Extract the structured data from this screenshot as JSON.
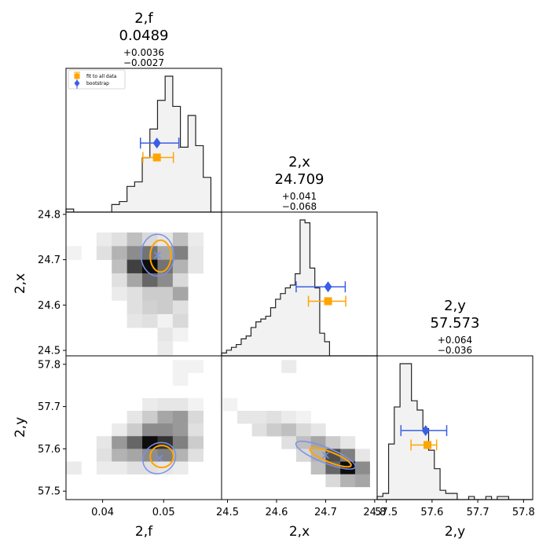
{
  "colors": {
    "fit": "#ffa500",
    "bootstrap": "#3a5fe6",
    "bootstrap_ellipse": "#7a90e6",
    "hist_fill": "#f2f2f2",
    "hist_line": "#222222"
  },
  "legend": {
    "fit_label": "fit to all data",
    "bootstrap_label": "bootstrap"
  },
  "chart_data": {
    "type": "corner",
    "parameters": [
      {
        "name": "2,f",
        "value": "0.0489",
        "err_plus": "+0.0036",
        "err_minus": "−0.0027",
        "range": [
          0.034,
          0.0595
        ],
        "ticks": [
          0.04,
          0.05
        ],
        "tick_labels": [
          "0.04",
          "0.05"
        ],
        "hist_edges_start": 0.034,
        "hist_bin_width": 0.00125,
        "hist_counts": [
          2,
          0,
          0,
          0,
          0,
          0,
          5,
          7,
          17,
          20,
          36,
          55,
          74,
          90,
          70,
          43,
          64,
          44,
          23,
          0,
          0
        ],
        "fit": {
          "value": 0.0489,
          "lo": 0.0466,
          "hi": 0.0516
        },
        "bootstrap": {
          "value": 0.0489,
          "lo": 0.0462,
          "hi": 0.0525
        }
      },
      {
        "name": "2,x",
        "value": "24.709",
        "err_plus": "+0.041",
        "err_minus": "−0.068",
        "range": [
          24.488,
          24.805
        ],
        "ticks": [
          24.5,
          24.6,
          24.7,
          24.8
        ],
        "tick_labels": [
          "24.5",
          "24.6",
          "24.7",
          "24.8"
        ],
        "hist_edges_start": 24.488,
        "hist_bin_width": 0.01,
        "hist_counts": [
          1,
          2,
          3,
          4,
          6,
          7,
          10,
          12,
          13,
          14,
          17,
          20,
          22,
          24,
          25,
          29,
          48,
          47,
          31,
          24,
          8,
          5,
          0
        ],
        "fit": {
          "value": 24.705,
          "lo": 24.665,
          "hi": 24.741
        },
        "bootstrap": {
          "value": 24.705,
          "lo": 24.64,
          "hi": 24.74
        }
      },
      {
        "name": "2,y",
        "value": "57.573",
        "err_plus": "+0.064",
        "err_minus": "−0.036",
        "range": [
          57.48,
          57.82
        ],
        "ticks": [
          57.5,
          57.6,
          57.7,
          57.8
        ],
        "tick_labels": [
          "57.5",
          "57.6",
          "57.7",
          "57.8"
        ],
        "hist_edges_start": 57.48,
        "hist_bin_width": 0.0125,
        "hist_counts": [
          1,
          2,
          18,
          30,
          44,
          44,
          32,
          29,
          23,
          16,
          10,
          3,
          2,
          2,
          0,
          0,
          1,
          0,
          0,
          1,
          0,
          1,
          1,
          0,
          0,
          0,
          0,
          0
        ],
        "fit": {
          "value": 57.59,
          "lo": 57.554,
          "hi": 57.61
        },
        "bootstrap": {
          "value": 57.586,
          "lo": 57.532,
          "hi": 57.632
        }
      }
    ],
    "panels": {
      "x_vs_f": {
        "x_param": 0,
        "y_param": 1,
        "cell_x_start": 0.034,
        "cell_x_width": 0.0025,
        "cell_y_start": 24.49,
        "cell_y_width": 0.03,
        "cells": [
          [
            0,
            7,
            0.05
          ],
          [
            2,
            8,
            0.08
          ],
          [
            3,
            8,
            0.12
          ],
          [
            4,
            8,
            0.25
          ],
          [
            5,
            8,
            0.15
          ],
          [
            6,
            8,
            0.1
          ],
          [
            7,
            8,
            0.25
          ],
          [
            8,
            8,
            0.08
          ],
          [
            2,
            7,
            0.12
          ],
          [
            3,
            7,
            0.3
          ],
          [
            4,
            7,
            0.45
          ],
          [
            5,
            7,
            0.55
          ],
          [
            6,
            7,
            0.35
          ],
          [
            7,
            7,
            0.5
          ],
          [
            8,
            7,
            0.1
          ],
          [
            3,
            6,
            0.25
          ],
          [
            4,
            6,
            0.75
          ],
          [
            5,
            6,
            0.95
          ],
          [
            6,
            6,
            0.55
          ],
          [
            7,
            6,
            0.3
          ],
          [
            8,
            6,
            0.1
          ],
          [
            3,
            5,
            0.12
          ],
          [
            4,
            5,
            0.35
          ],
          [
            5,
            5,
            0.6
          ],
          [
            6,
            5,
            0.45
          ],
          [
            7,
            5,
            0.15
          ],
          [
            3,
            4,
            0.08
          ],
          [
            4,
            4,
            0.12
          ],
          [
            5,
            4,
            0.2
          ],
          [
            6,
            4,
            0.2
          ],
          [
            7,
            4,
            0.35
          ],
          [
            4,
            3,
            0.12
          ],
          [
            5,
            3,
            0.18
          ],
          [
            6,
            3,
            0.2
          ],
          [
            7,
            3,
            0.12
          ],
          [
            4,
            2,
            0.1
          ],
          [
            5,
            2,
            0.12
          ],
          [
            6,
            2,
            0.05
          ],
          [
            7,
            2,
            0.15
          ],
          [
            6,
            1,
            0.1
          ],
          [
            7,
            1,
            0.05
          ],
          [
            6,
            0,
            0.08
          ]
        ],
        "fit_ellipse": {
          "cx": 0.0495,
          "cy": 24.708,
          "rx": 0.0017,
          "ry": 0.035,
          "angle": 0
        },
        "bootstrap_ellipse": {
          "cx": 0.049,
          "cy": 24.71,
          "rx": 0.0027,
          "ry": 0.046,
          "angle": 0
        }
      },
      "y_vs_f": {
        "x_param": 0,
        "y_param": 2,
        "cell_x_start": 0.034,
        "cell_x_width": 0.0025,
        "cell_y_start": 57.48,
        "cell_y_width": 0.03,
        "cells": [
          [
            7,
            10,
            0.05
          ],
          [
            8,
            10,
            0.05
          ],
          [
            7,
            9,
            0.05
          ],
          [
            5,
            7,
            0.08
          ],
          [
            6,
            7,
            0.1
          ],
          [
            7,
            7,
            0.1
          ],
          [
            8,
            7,
            0.05
          ],
          [
            4,
            6,
            0.1
          ],
          [
            5,
            6,
            0.2
          ],
          [
            6,
            6,
            0.35
          ],
          [
            7,
            6,
            0.4
          ],
          [
            8,
            6,
            0.15
          ],
          [
            3,
            5,
            0.08
          ],
          [
            4,
            5,
            0.2
          ],
          [
            5,
            5,
            0.45
          ],
          [
            6,
            5,
            0.45
          ],
          [
            7,
            5,
            0.4
          ],
          [
            8,
            5,
            0.12
          ],
          [
            2,
            4,
            0.1
          ],
          [
            3,
            4,
            0.4
          ],
          [
            4,
            4,
            0.6
          ],
          [
            5,
            4,
            0.95
          ],
          [
            6,
            4,
            0.8
          ],
          [
            7,
            4,
            0.5
          ],
          [
            8,
            4,
            0.2
          ],
          [
            2,
            3,
            0.12
          ],
          [
            3,
            3,
            0.3
          ],
          [
            4,
            3,
            0.35
          ],
          [
            5,
            3,
            0.45
          ],
          [
            6,
            3,
            0.5
          ],
          [
            7,
            3,
            0.3
          ],
          [
            8,
            3,
            0.12
          ],
          [
            0,
            2,
            0.08
          ],
          [
            2,
            2,
            0.08
          ],
          [
            3,
            2,
            0.08
          ],
          [
            4,
            2,
            0.12
          ],
          [
            5,
            2,
            0.12
          ],
          [
            6,
            2,
            0.1
          ],
          [
            7,
            2,
            0.08
          ]
        ],
        "fit_ellipse": {
          "cx": 0.0497,
          "cy": 57.582,
          "rx": 0.0019,
          "ry": 0.026,
          "angle": 0
        },
        "bootstrap_ellipse": {
          "cx": 0.0493,
          "cy": 57.578,
          "rx": 0.0028,
          "ry": 0.035,
          "angle": -35
        }
      },
      "y_vs_x": {
        "x_param": 1,
        "y_param": 2,
        "cell_x_start": 24.49,
        "cell_x_width": 0.03,
        "cell_y_start": 57.48,
        "cell_y_width": 0.03,
        "cells": [
          [
            0,
            7,
            0.05
          ],
          [
            1,
            6,
            0.1
          ],
          [
            2,
            6,
            0.1
          ],
          [
            3,
            6,
            0.12
          ],
          [
            4,
            6,
            0.08
          ],
          [
            5,
            6,
            0.05
          ],
          [
            2,
            5,
            0.12
          ],
          [
            3,
            5,
            0.2
          ],
          [
            4,
            5,
            0.25
          ],
          [
            5,
            5,
            0.15
          ],
          [
            6,
            5,
            0.1
          ],
          [
            4,
            4,
            0.12
          ],
          [
            5,
            4,
            0.25
          ],
          [
            6,
            4,
            0.35
          ],
          [
            7,
            4,
            0.2
          ],
          [
            8,
            4,
            0.1
          ],
          [
            5,
            3,
            0.15
          ],
          [
            6,
            3,
            0.3
          ],
          [
            7,
            3,
            0.7
          ],
          [
            8,
            3,
            0.5
          ],
          [
            9,
            3,
            0.1
          ],
          [
            6,
            2,
            0.25
          ],
          [
            7,
            2,
            0.6
          ],
          [
            8,
            2,
            0.95
          ],
          [
            9,
            2,
            0.45
          ],
          [
            7,
            1,
            0.15
          ],
          [
            8,
            1,
            0.3
          ],
          [
            9,
            1,
            0.35
          ],
          [
            4,
            10,
            0.08
          ]
        ],
        "fit_ellipse": {
          "cx": 24.71,
          "cy": 57.58,
          "rx": 0.045,
          "ry": 0.012,
          "angle": 22
        },
        "bootstrap_ellipse": {
          "cx": 24.7,
          "cy": 57.585,
          "rx": 0.065,
          "ry": 0.018,
          "angle": 22
        }
      }
    }
  }
}
